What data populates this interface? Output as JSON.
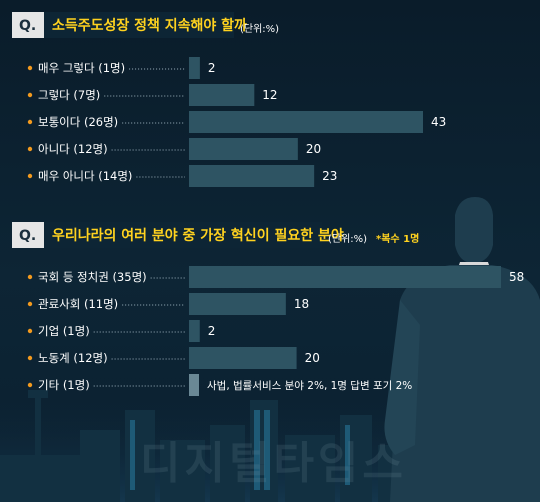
{
  "chart_data": [
    {
      "type": "bar",
      "orientation": "horizontal",
      "q_label": "Q.",
      "title": "소득주도성장 정책 지속해야 할까",
      "unit_label": "(단위:%)",
      "categories": [
        "매우 그렇다 (1명)",
        "그렇다 (7명)",
        "보통이다 (26명)",
        "아니다 (12명)",
        "매우 아니다 (14명)"
      ],
      "values": [
        2,
        12,
        43,
        20,
        23
      ],
      "xlim": [
        0,
        43
      ]
    },
    {
      "type": "bar",
      "orientation": "horizontal",
      "q_label": "Q.",
      "title": "우리나라의 여러 분야 중 가장 혁신이 필요한 분야",
      "unit_label": "(단위:%)",
      "note": "*복수 1명",
      "categories": [
        "국회 등 정치권 (35명)",
        "관료사회 (11명)",
        "기업 (1명)",
        "노동계 (12명)",
        "기타 (1명)"
      ],
      "values": [
        58,
        18,
        2,
        20,
        2
      ],
      "value_labels": [
        "58",
        "18",
        "2",
        "20",
        "사법, 법률서비스 분야 2%, 1명 답변 포기 2%"
      ],
      "xlim": [
        0,
        58
      ]
    }
  ],
  "watermark": "디지털타임스",
  "colors": {
    "bar": "#2e5463",
    "bar_other": "#6a8895",
    "accent": "#ffd21f",
    "bullet": "#f39a1e"
  }
}
